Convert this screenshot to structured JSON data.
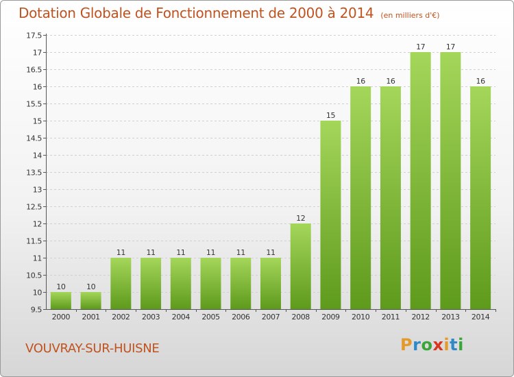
{
  "header": {
    "title": "Dotation Globale de Fonctionnement de 2000 à 2014",
    "subtitle": "(en milliers d'€)"
  },
  "footer": {
    "commune": "VOUVRAY-SUR-HUISNE",
    "logo_text": "Proxiti"
  },
  "colors": {
    "title": "#c0521f",
    "bar_light": "#a4d65a",
    "bar_dark": "#5e9a1c",
    "grid": "#d0d0d0"
  },
  "chart_data": {
    "type": "bar",
    "categories": [
      "2000",
      "2001",
      "2002",
      "2003",
      "2004",
      "2005",
      "2006",
      "2007",
      "2008",
      "2009",
      "2010",
      "2011",
      "2012",
      "2013",
      "2014"
    ],
    "values": [
      10,
      10,
      11,
      11,
      11,
      11,
      11,
      11,
      12,
      15,
      16,
      16,
      17,
      17,
      16
    ],
    "data_labels": [
      "10",
      "10",
      "11",
      "11",
      "11",
      "11",
      "11",
      "11",
      "12",
      "15",
      "16",
      "16",
      "17",
      "17",
      "16"
    ],
    "ylim": [
      9.5,
      17.5
    ],
    "yticks": [
      9.5,
      10,
      10.5,
      11,
      11.5,
      12,
      12.5,
      13,
      13.5,
      14,
      14.5,
      15,
      15.5,
      16,
      16.5,
      17,
      17.5
    ],
    "ytick_labels": [
      "9.5",
      "10",
      "10.5",
      "11",
      "11.5",
      "12",
      "12.5",
      "13",
      "13.5",
      "14",
      "14.5",
      "15",
      "15.5",
      "16",
      "16.5",
      "17",
      "17.5"
    ],
    "grid": true,
    "legend": "none"
  }
}
